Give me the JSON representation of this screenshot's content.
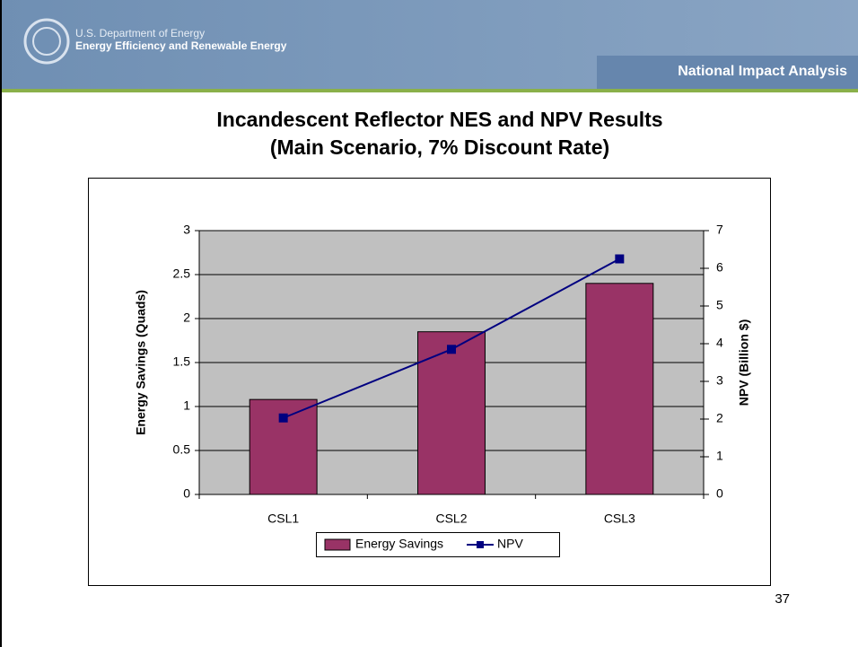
{
  "header": {
    "org_line1": "U.S. Department of Energy",
    "org_line2": "Energy Efficiency and Renewable Energy",
    "section": "National Impact Analysis"
  },
  "page_number": "37",
  "chart_data": {
    "type": "bar",
    "title": "Incandescent Reflector NES and NPV Results",
    "subtitle": "(Main Scenario, 7% Discount Rate)",
    "categories": [
      "CSL1",
      "CSL2",
      "CSL3"
    ],
    "series": [
      {
        "name": "Energy Savings",
        "color": "#993366",
        "values": [
          1.08,
          1.85,
          2.4
        ]
      },
      {
        "name": "NPV",
        "color": "#000080",
        "type": "line",
        "axis": "y2",
        "values": [
          2.03,
          3.85,
          6.25
        ]
      }
    ],
    "y_label": "Energy Savings (Quads)",
    "y2_label": "NPV (Billion $)",
    "ylim": [
      0,
      3
    ],
    "yticks": [
      0,
      0.5,
      1,
      1.5,
      2,
      2.5,
      3
    ],
    "y2lim": [
      0,
      7
    ],
    "y2ticks": [
      0,
      1,
      2,
      3,
      4,
      5,
      6,
      7
    ],
    "grid": true,
    "legend": "bottom",
    "plot_background": "#c0c0c0"
  }
}
